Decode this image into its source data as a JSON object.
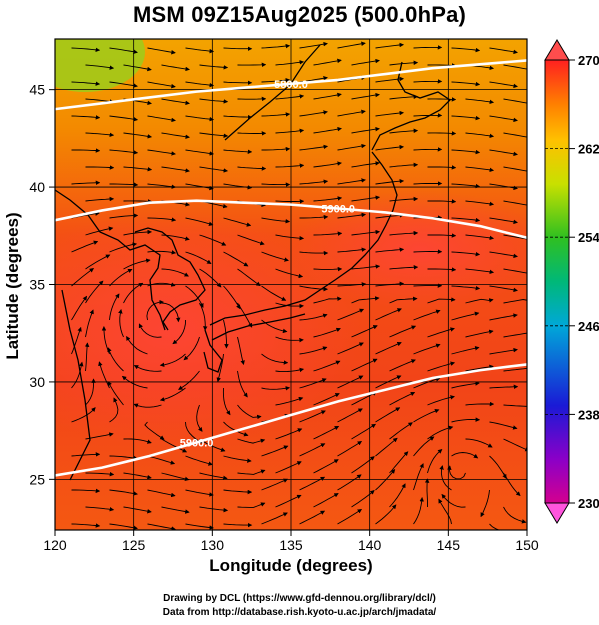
{
  "title": "MSM 09Z15Aug2025 (500.0hPa)",
  "xaxis": {
    "label": "Longitude (degrees)",
    "range": [
      120,
      150
    ],
    "ticks": [
      "120",
      "125",
      "130",
      "135",
      "140",
      "145",
      "150"
    ]
  },
  "yaxis": {
    "label": "Latitude  (degrees)",
    "range": [
      22.4,
      47.6
    ],
    "ticks": [
      "25",
      "30",
      "35",
      "40",
      "45"
    ]
  },
  "colorbar": {
    "ticks": [
      "270",
      "262",
      "254",
      "246",
      "238",
      "230"
    ],
    "range": [
      230,
      270
    ]
  },
  "contours": [
    {
      "label": "5800.0",
      "lat_points": [
        44.0,
        44.3,
        44.6,
        44.9,
        45.1,
        45.3,
        45.5,
        45.8,
        46.1,
        46.3,
        46.5
      ]
    },
    {
      "label": "5900.0",
      "lat_points": [
        38.3,
        38.8,
        39.2,
        39.3,
        39.2,
        39.1,
        38.9,
        38.7,
        38.4,
        38.0,
        37.4
      ]
    },
    {
      "label": "5900.0",
      "lat_points": [
        25.2,
        25.6,
        26.2,
        26.9,
        27.6,
        28.3,
        29.0,
        29.6,
        30.2,
        30.6,
        30.9
      ]
    }
  ],
  "credits": {
    "line1": "Drawing by DCL (https://www.gfd-dennou.org/library/dcl/)",
    "line2": "Data from http://database.rish.kyoto-u.ac.jp/arch/jmadata/"
  }
}
